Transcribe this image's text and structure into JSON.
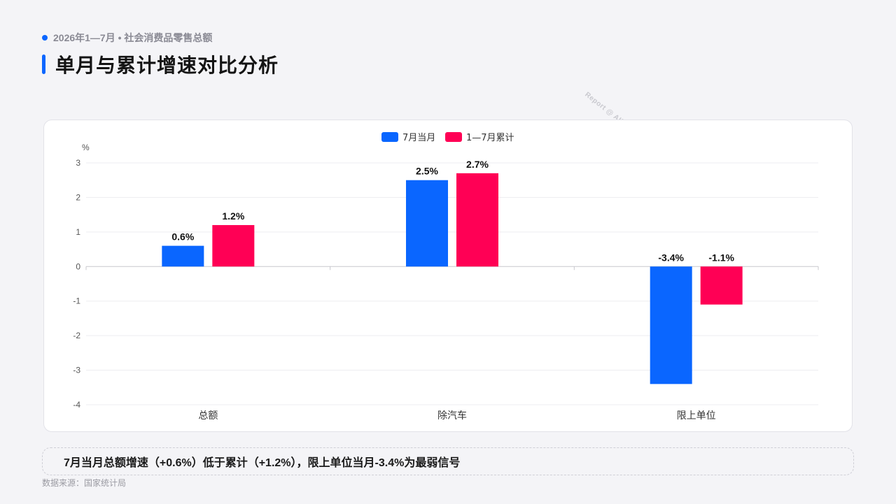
{
  "header": {
    "eyebrow": "2026年1—7月 • 社会消费品零售总额",
    "title": "单月与累计增速对比分析"
  },
  "watermark": "Report @ AIDataSlide.com",
  "chart_data": {
    "type": "bar",
    "ylabel": "%",
    "ylim": [
      -4,
      3
    ],
    "yticks": [
      3,
      2,
      1,
      0,
      -1,
      -2,
      -3,
      -4
    ],
    "categories": [
      "总额",
      "除汽车",
      "限上单位"
    ],
    "legend_position": "top-center",
    "grid": true,
    "series": [
      {
        "name": "7月当月",
        "color": "#0a66ff",
        "values": [
          0.6,
          2.5,
          -3.4
        ],
        "labels": [
          "0.6%",
          "2.5%",
          "-3.4%"
        ]
      },
      {
        "name": "1—7月累计",
        "color": "#ff0055",
        "values": [
          1.2,
          2.7,
          -1.1
        ],
        "labels": [
          "1.2%",
          "2.7%",
          "-1.1%"
        ]
      }
    ]
  },
  "summary": "7月当月总额增速（+0.6%）低于累计（+1.2%），限上单位当月-3.4%为最弱信号",
  "source": "数据来源：国家统计局"
}
